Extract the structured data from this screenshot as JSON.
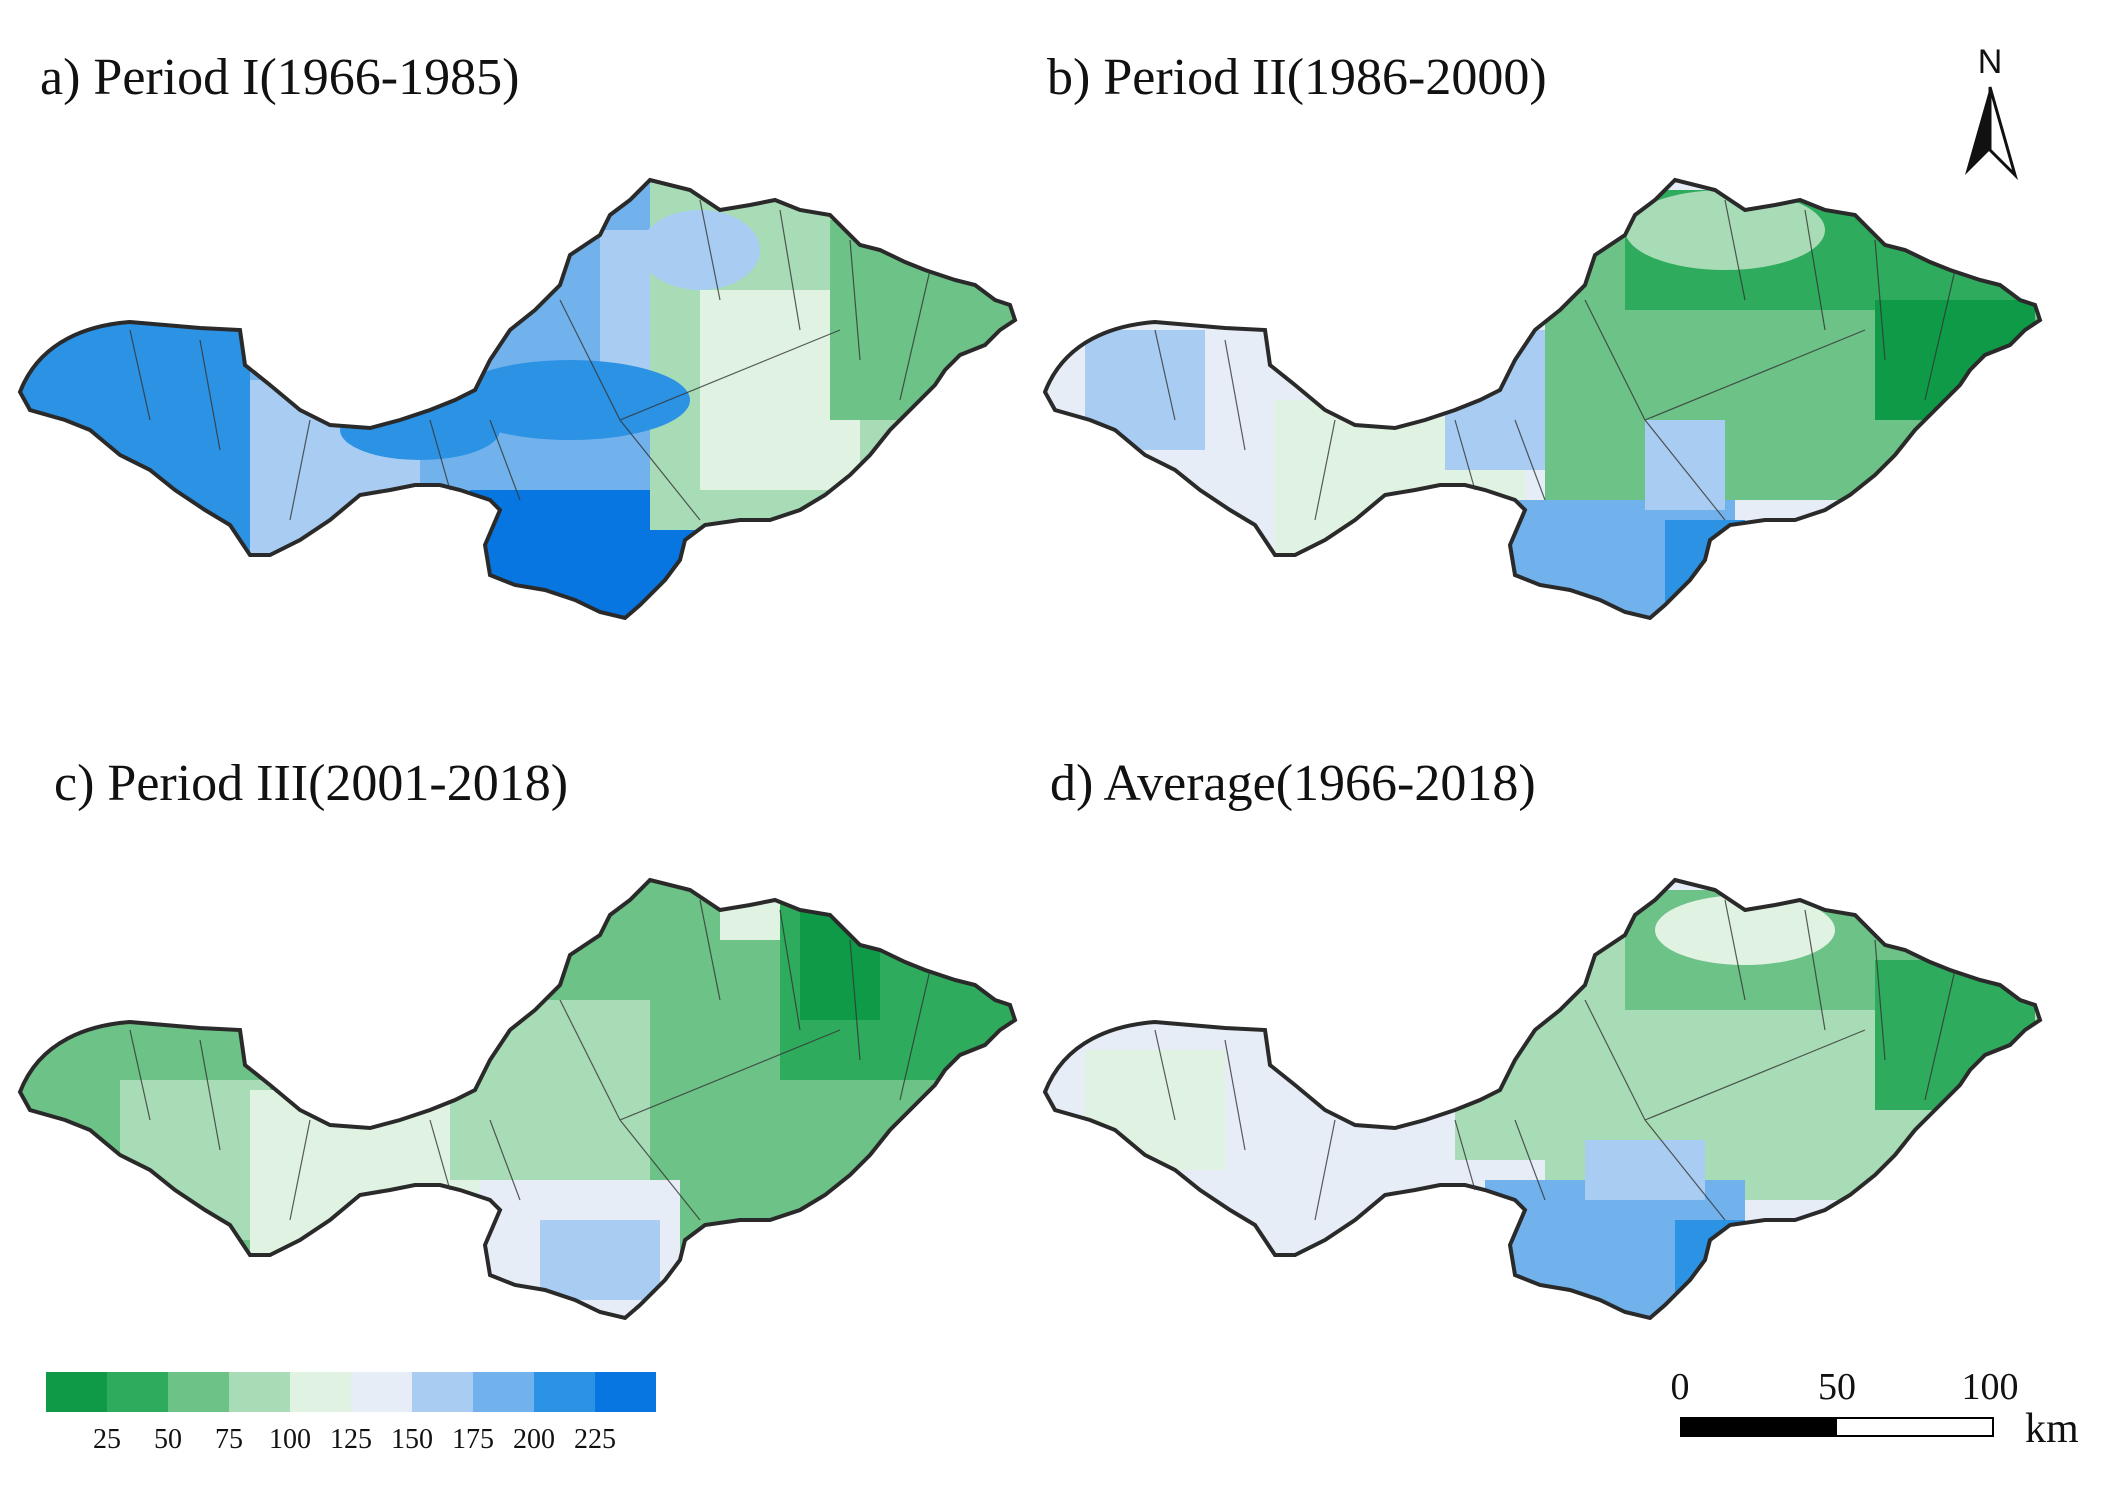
{
  "panels": [
    {
      "id": "a",
      "title": "a) Period I(1966-1985)"
    },
    {
      "id": "b",
      "title": "b) Period II(1986-2000)"
    },
    {
      "id": "c",
      "title": "c) Period III(2001-2018)"
    },
    {
      "id": "d",
      "title": "d) Average(1966-2018)"
    }
  ],
  "north_arrow": {
    "label": "N"
  },
  "legend": {
    "colors": [
      "#0f9a48",
      "#2eab5d",
      "#6cc287",
      "#a8dcb6",
      "#e0f3e2",
      "#e6edf7",
      "#a9cdf2",
      "#72b2ec",
      "#2b92e4",
      "#0876e0"
    ],
    "tick_labels": [
      "25",
      "50",
      "75",
      "100",
      "125",
      "150",
      "175",
      "200",
      "225"
    ]
  },
  "scale_bar": {
    "labels": [
      "0",
      "50",
      "100"
    ],
    "unit": "km"
  }
}
